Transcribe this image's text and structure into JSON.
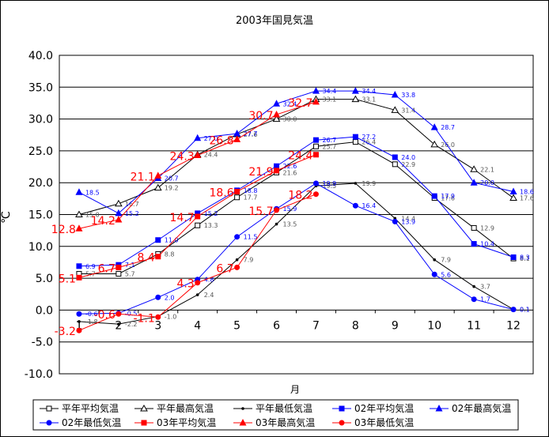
{
  "chart_data": {
    "type": "line",
    "title": "2003年国見気温",
    "xlabel": "月",
    "ylabel": "℃",
    "categories": [
      "1",
      "2",
      "3",
      "4",
      "5",
      "6",
      "7",
      "8",
      "9",
      "10",
      "11",
      "12"
    ],
    "ylim": [
      -10,
      40
    ],
    "yticks": [
      "-10.0",
      "-5.0",
      "0.0",
      "5.0",
      "10.0",
      "15.0",
      "20.0",
      "25.0",
      "30.0",
      "35.0",
      "40.0"
    ],
    "grid": "horizontal",
    "legend_position": "bottom",
    "series": [
      {
        "name": "平年平均気温",
        "color": "#000000",
        "marker": "open-square",
        "label_color": "#555555",
        "values": [
          5.7,
          5.7,
          8.8,
          13.3,
          17.7,
          21.6,
          25.7,
          26.4,
          22.9,
          17.6,
          12.9,
          8.1
        ]
      },
      {
        "name": "平年最高気温",
        "color": "#000000",
        "marker": "open-triangle",
        "label_color": "#555555",
        "values": [
          15.0,
          16.7,
          19.2,
          24.4,
          27.6,
          30.0,
          33.1,
          33.1,
          31.4,
          26.0,
          22.1,
          17.6
        ]
      },
      {
        "name": "平年最低気温",
        "color": "#000000",
        "marker": "small-dot",
        "label_color": "#555555",
        "values": [
          -1.8,
          -2.2,
          -1.0,
          2.4,
          7.9,
          13.5,
          19.5,
          19.9,
          14.4,
          7.9,
          3.7,
          0.1
        ]
      },
      {
        "name": "02年平均気温",
        "color": "#0000ff",
        "marker": "square",
        "label_color": "#0000ff",
        "values": [
          6.9,
          7.1,
          11.0,
          15.2,
          18.8,
          22.6,
          26.7,
          27.2,
          24.0,
          17.9,
          10.4,
          8.3
        ]
      },
      {
        "name": "02年最高気温",
        "color": "#0000ff",
        "marker": "triangle",
        "label_color": "#0000ff",
        "values": [
          18.5,
          15.2,
          20.7,
          27.0,
          27.7,
          32.4,
          34.4,
          34.4,
          33.8,
          28.7,
          20.0,
          18.6
        ]
      },
      {
        "name": "02年最低気温",
        "color": "#0000ff",
        "marker": "circle",
        "label_color": "#0000ff",
        "values": [
          -0.6,
          -0.5,
          2.0,
          4.8,
          11.5,
          15.9,
          19.9,
          16.4,
          13.9,
          5.6,
          1.7,
          0.1
        ]
      },
      {
        "name": "03年平均気温",
        "color": "#ff0000",
        "marker": "square",
        "label_color": "#ff0000",
        "values": [
          5.1,
          6.7,
          8.4,
          14.7,
          18.6,
          21.9,
          24.4,
          null,
          null,
          null,
          null,
          null
        ]
      },
      {
        "name": "03年最高気温",
        "color": "#ff0000",
        "marker": "triangle",
        "label_color": "#ff0000",
        "values": [
          12.8,
          14.2,
          21.1,
          24.3,
          26.8,
          30.7,
          32.7,
          null,
          null,
          null,
          null,
          null
        ]
      },
      {
        "name": "03年最低気温",
        "color": "#ff0000",
        "marker": "circle",
        "label_color": "#ff0000",
        "values": [
          -3.2,
          -0.6,
          -1.1,
          4.3,
          6.7,
          15.7,
          18.2,
          null,
          null,
          null,
          null,
          null
        ]
      }
    ]
  }
}
